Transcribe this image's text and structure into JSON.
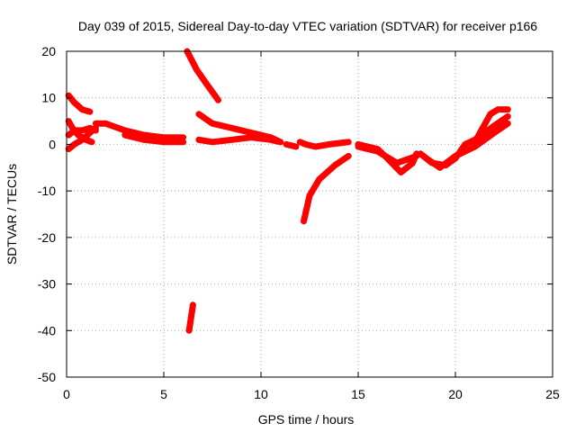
{
  "chart_data": {
    "type": "scatter",
    "title": "Day 039 of 2015, Sidereal Day-to-day VTEC variation (SDTVAR) for receiver p166",
    "xlabel": "GPS time / hours",
    "ylabel": "SDTVAR / TECUs",
    "xlim": [
      0,
      25
    ],
    "ylim": [
      -50,
      20
    ],
    "xticks": [
      0,
      5,
      10,
      15,
      20,
      25
    ],
    "yticks": [
      -50,
      -40,
      -30,
      -20,
      -10,
      0,
      10,
      20
    ],
    "xtick_labels": [
      "0",
      "5",
      "10",
      "15",
      "20",
      "25"
    ],
    "ytick_labels": [
      "-50",
      "-40",
      "-30",
      "-20",
      "-10",
      "0",
      "10",
      "20"
    ],
    "grid": true,
    "legend": "none",
    "marker": "plus",
    "color": "#ff0000",
    "series": [
      {
        "x": [
          0.1,
          0.4,
          0.8,
          1.2
        ],
        "y": [
          10.5,
          9.0,
          7.5,
          7.0
        ]
      },
      {
        "x": [
          0.1,
          0.4,
          0.8,
          1.2,
          1.5
        ],
        "y": [
          -1.0,
          0.0,
          1.0,
          2.5,
          3.5
        ]
      },
      {
        "x": [
          0.1,
          0.4,
          0.8,
          1.2,
          1.5
        ],
        "y": [
          2.0,
          3.0,
          3.0,
          3.5,
          3.0
        ]
      },
      {
        "x": [
          0.1,
          0.3,
          0.6,
          1.0,
          1.3
        ],
        "y": [
          5.0,
          3.5,
          2.0,
          1.0,
          0.5
        ]
      },
      {
        "x": [
          1.5,
          2.0,
          3.0,
          4.0,
          5.0,
          6.0
        ],
        "y": [
          4.5,
          4.5,
          3.0,
          2.0,
          1.5,
          1.5
        ]
      },
      {
        "x": [
          3.0,
          4.0,
          5.0,
          6.0
        ],
        "y": [
          2.0,
          1.0,
          0.5,
          0.5
        ]
      },
      {
        "x": [
          6.2,
          6.7,
          7.2,
          7.8
        ],
        "y": [
          20.0,
          16.0,
          13.0,
          9.5
        ]
      },
      {
        "x": [
          6.3,
          6.5
        ],
        "y": [
          -40.0,
          -34.5
        ]
      },
      {
        "x": [
          6.8,
          7.5,
          8.5,
          9.5,
          10.5,
          11.0
        ],
        "y": [
          6.5,
          4.5,
          3.5,
          2.5,
          1.5,
          0.5
        ]
      },
      {
        "x": [
          6.8,
          7.5,
          8.5,
          9.5,
          10.5,
          11.0
        ],
        "y": [
          1.0,
          0.5,
          1.0,
          1.5,
          1.0,
          0.5
        ]
      },
      {
        "x": [
          11.3,
          11.8
        ],
        "y": [
          0.0,
          -0.5
        ]
      },
      {
        "x": [
          12.0,
          12.3,
          12.8,
          13.5,
          14.5
        ],
        "y": [
          0.5,
          0.0,
          -0.5,
          0.0,
          0.5
        ]
      },
      {
        "x": [
          12.2,
          12.5,
          13.0,
          13.8,
          14.5
        ],
        "y": [
          -16.5,
          -11.0,
          -7.5,
          -4.5,
          -2.5
        ]
      },
      {
        "x": [
          15.0,
          16.0,
          16.5,
          17.2,
          17.8,
          18.0
        ],
        "y": [
          0.0,
          -1.0,
          -3.0,
          -6.0,
          -4.0,
          -2.0
        ]
      },
      {
        "x": [
          15.0,
          16.0,
          17.0,
          18.0
        ],
        "y": [
          -0.5,
          -1.5,
          -4.0,
          -2.5
        ]
      },
      {
        "x": [
          18.2,
          18.8,
          19.5,
          20.0,
          20.5,
          21.0,
          22.0,
          22.7
        ],
        "y": [
          -2.0,
          -4.0,
          -4.5,
          -3.0,
          0.0,
          1.0,
          4.0,
          6.0
        ]
      },
      {
        "x": [
          18.5,
          19.2,
          20.0,
          21.0,
          22.0,
          22.7
        ],
        "y": [
          -3.0,
          -5.0,
          -2.5,
          -0.5,
          2.5,
          4.5
        ]
      },
      {
        "x": [
          21.0,
          21.8,
          22.2,
          22.7
        ],
        "y": [
          0.5,
          6.5,
          7.5,
          7.5
        ]
      }
    ]
  }
}
